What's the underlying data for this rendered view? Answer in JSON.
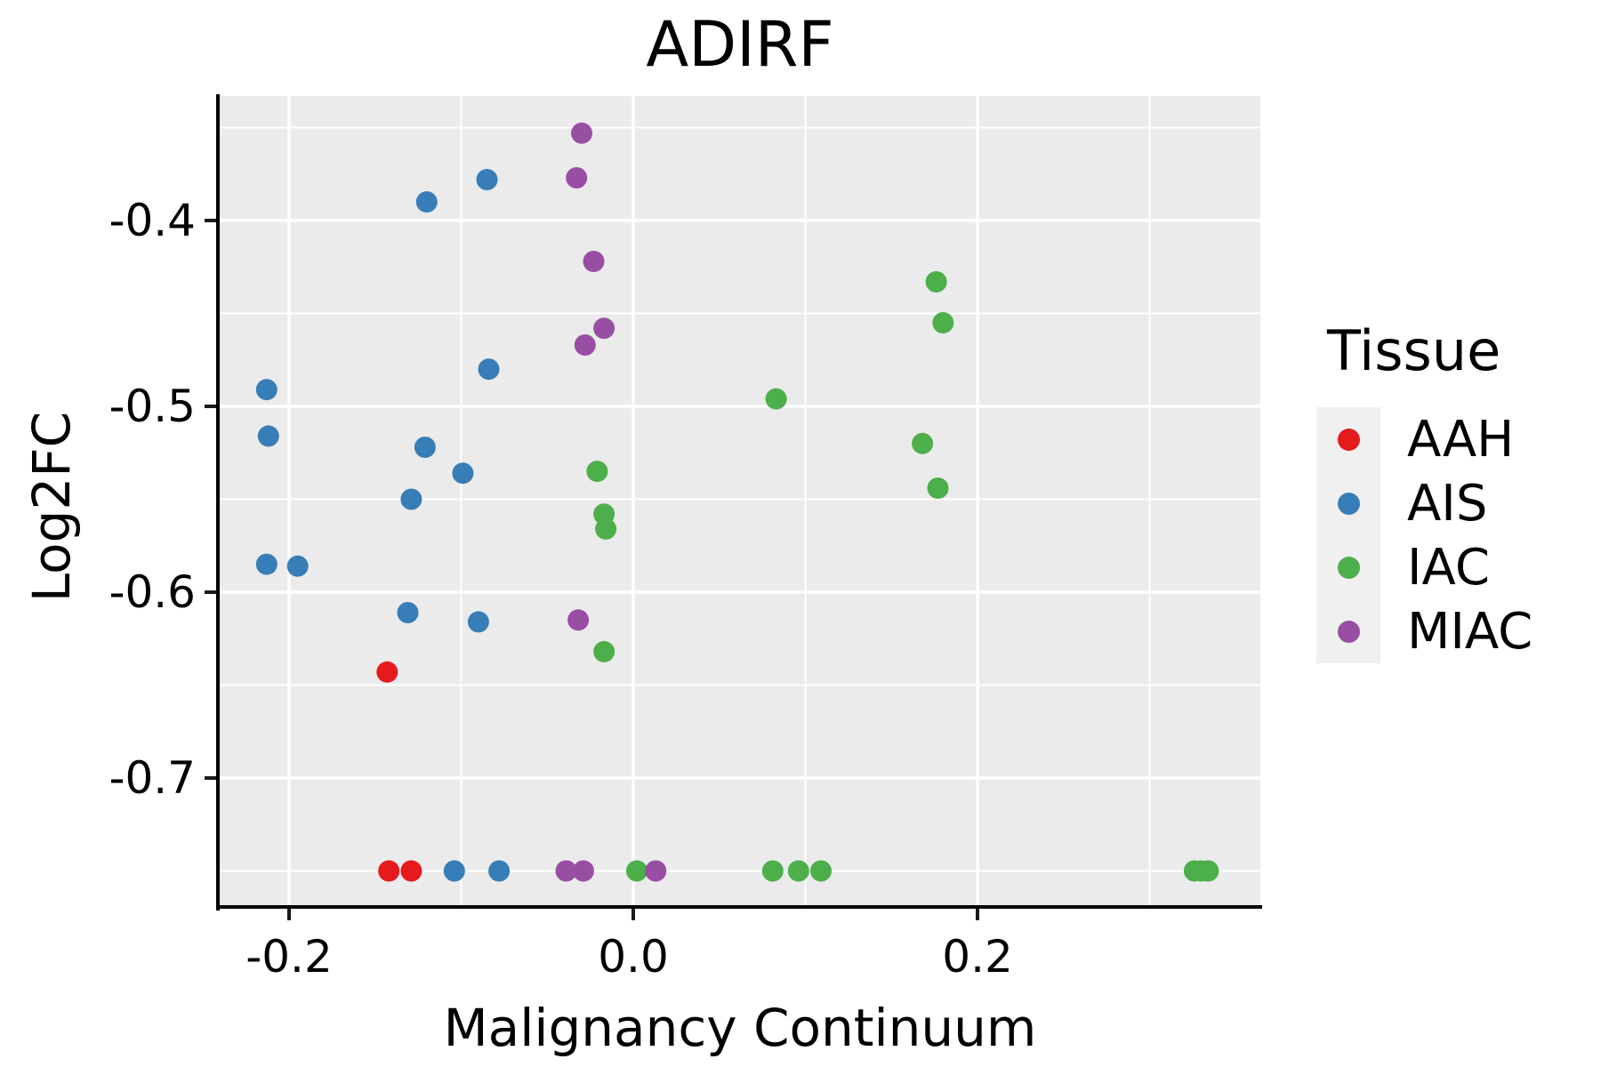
{
  "chart_data": {
    "type": "scatter",
    "title": "ADIRF",
    "xlabel": "Malignancy Continuum",
    "ylabel": "Log2FC",
    "x_domain": [
      -0.2403,
      0.3643
    ],
    "y_domain_top": -0.333,
    "y_domain_bottom": -0.7694,
    "grid": "white major+minor gridlines on grey panel",
    "x_ticks_major": [
      {
        "value": -0.2,
        "label": "-0.2"
      },
      {
        "value": 0.0,
        "label": "0.0"
      },
      {
        "value": 0.2,
        "label": "0.2"
      }
    ],
    "x_ticks_minor": [
      -0.1,
      0.1,
      0.3
    ],
    "y_ticks_major": [
      {
        "value": -0.4,
        "label": "-0.4"
      },
      {
        "value": -0.5,
        "label": "-0.5"
      },
      {
        "value": -0.6,
        "label": "-0.6"
      },
      {
        "value": -0.7,
        "label": "-0.7"
      }
    ],
    "y_ticks_minor": [
      -0.35,
      -0.45,
      -0.55,
      -0.65,
      -0.75
    ],
    "legend": {
      "title": "Tissue",
      "position": "right"
    },
    "series": [
      {
        "name": "AAH",
        "color": "#e41a1c",
        "points": [
          [
            -0.143,
            -0.643
          ],
          [
            -0.142,
            -0.75
          ],
          [
            -0.129,
            -0.75
          ]
        ]
      },
      {
        "name": "AIS",
        "color": "#377eb8",
        "points": [
          [
            -0.085,
            -0.378
          ],
          [
            -0.12,
            -0.39
          ],
          [
            -0.084,
            -0.48
          ],
          [
            -0.213,
            -0.491
          ],
          [
            -0.212,
            -0.516
          ],
          [
            -0.121,
            -0.522
          ],
          [
            -0.099,
            -0.536
          ],
          [
            -0.129,
            -0.55
          ],
          [
            -0.213,
            -0.585
          ],
          [
            -0.195,
            -0.586
          ],
          [
            -0.131,
            -0.611
          ],
          [
            -0.09,
            -0.616
          ],
          [
            -0.104,
            -0.75
          ],
          [
            -0.078,
            -0.75
          ]
        ]
      },
      {
        "name": "IAC",
        "color": "#4daf4a",
        "points": [
          [
            0.176,
            -0.433
          ],
          [
            0.18,
            -0.455
          ],
          [
            0.083,
            -0.496
          ],
          [
            0.168,
            -0.52
          ],
          [
            -0.021,
            -0.535
          ],
          [
            0.177,
            -0.544
          ],
          [
            -0.017,
            -0.558
          ],
          [
            -0.016,
            -0.566
          ],
          [
            -0.017,
            -0.632
          ],
          [
            0.002,
            -0.75
          ],
          [
            0.081,
            -0.75
          ],
          [
            0.096,
            -0.75
          ],
          [
            0.109,
            -0.75
          ],
          [
            0.326,
            -0.75
          ],
          [
            0.33,
            -0.75
          ],
          [
            0.334,
            -0.75
          ]
        ]
      },
      {
        "name": "MIAC",
        "color": "#984ea3",
        "points": [
          [
            -0.03,
            -0.353
          ],
          [
            -0.033,
            -0.377
          ],
          [
            -0.023,
            -0.422
          ],
          [
            -0.017,
            -0.458
          ],
          [
            -0.028,
            -0.467
          ],
          [
            -0.032,
            -0.615
          ],
          [
            -0.039,
            -0.75
          ],
          [
            -0.029,
            -0.75
          ],
          [
            0.013,
            -0.75
          ]
        ]
      }
    ]
  },
  "style": {
    "panel_bg": "#ebebeb",
    "grid_color": "#ffffff",
    "axis_color": "#000000",
    "text_color": "#000000",
    "legend_key_bg": "#f0f0f0",
    "point_radius": 12
  }
}
